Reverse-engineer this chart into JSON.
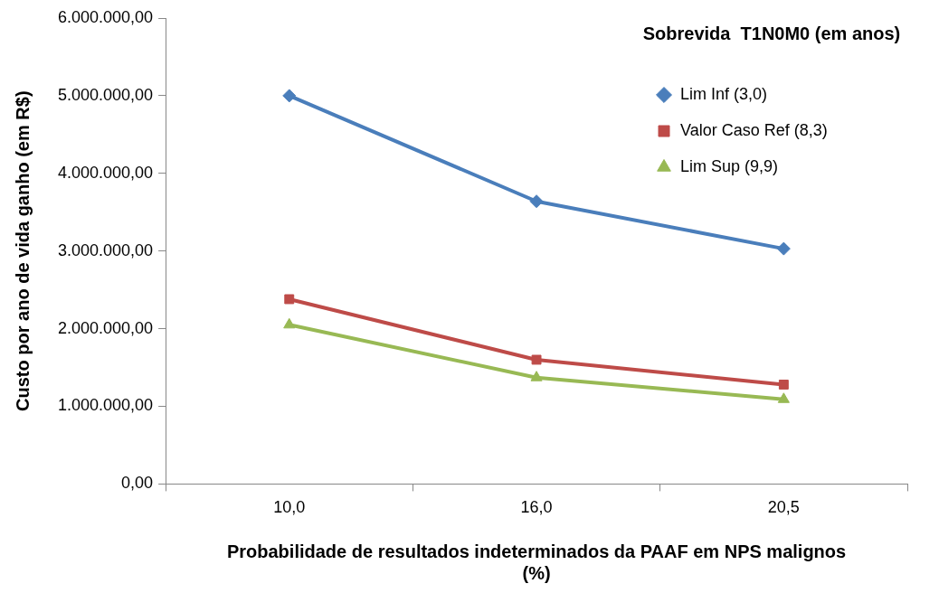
{
  "chart_data": {
    "type": "line",
    "xlabel": "Probabilidade de resultados indeterminados da PAAF em NPS malignos (%)",
    "ylabel": "Custo por ano de vida ganho (em R$)",
    "legend_title": "Sobrevida  T1N0M0 (em anos)",
    "legend": "top right",
    "grid": false,
    "line_style": "solid",
    "categories": [
      "10,0",
      "16,0",
      "20,5"
    ],
    "ylim": [
      0,
      6000000
    ],
    "yticks": [
      {
        "value": 0,
        "label": "0,00"
      },
      {
        "value": 1000000,
        "label": "1.000.000,00"
      },
      {
        "value": 2000000,
        "label": "2.000.000,00"
      },
      {
        "value": 3000000,
        "label": "3.000.000,00"
      },
      {
        "value": 4000000,
        "label": "4.000.000,00"
      },
      {
        "value": 5000000,
        "label": "5.000.000,00"
      },
      {
        "value": 6000000,
        "label": "6.000.000,00"
      }
    ],
    "series": [
      {
        "name": "Lim Inf (3,0)",
        "color": "#4a7ebb",
        "marker": "diamond",
        "values": [
          5000000,
          3640000,
          3030000
        ]
      },
      {
        "name": "Valor Caso Ref (8,3)",
        "color": "#be4b48",
        "marker": "square",
        "values": [
          2380000,
          1600000,
          1280000
        ]
      },
      {
        "name": "Lim Sup (9,9)",
        "color": "#98b954",
        "marker": "triangle",
        "values": [
          2050000,
          1370000,
          1090000
        ]
      }
    ]
  }
}
